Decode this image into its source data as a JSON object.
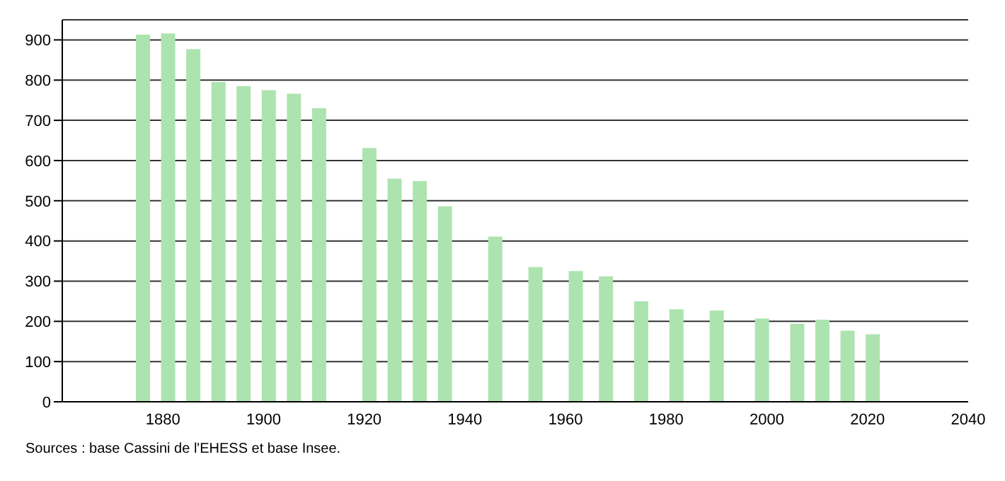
{
  "chart_data": {
    "type": "bar",
    "x": [
      1876,
      1881,
      1886,
      1891,
      1896,
      1901,
      1906,
      1911,
      1921,
      1926,
      1931,
      1936,
      1946,
      1954,
      1962,
      1968,
      1975,
      1982,
      1990,
      1999,
      2006,
      2011,
      2016,
      2021
    ],
    "values": [
      913,
      916,
      877,
      795,
      785,
      775,
      766,
      730,
      631,
      555,
      549,
      486,
      411,
      335,
      325,
      312,
      250,
      230,
      227,
      207,
      194,
      204,
      177,
      168
    ],
    "color": "#ade3af",
    "xlim": [
      1860,
      2040
    ],
    "xticks": [
      1880,
      1900,
      1920,
      1940,
      1960,
      1980,
      2000,
      2020,
      2040
    ],
    "ylim": [
      0,
      950
    ],
    "yticks": [
      0,
      100,
      200,
      300,
      400,
      500,
      600,
      700,
      800,
      900
    ],
    "grid": "y",
    "annotations": [
      "Sources : base Cassini de l'EHESS et base Insee."
    ]
  }
}
